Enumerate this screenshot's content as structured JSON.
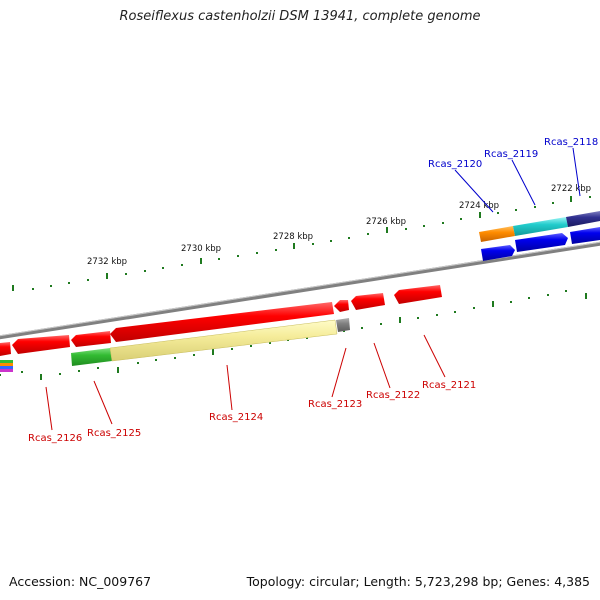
{
  "title": "Roseiflexus castenholzii DSM 13941, complete genome",
  "footer": {
    "accession": "Accession: NC_009767",
    "info": "Topology: circular; Length: 5,723,298 bp; Genes: 4,385"
  },
  "colors": {
    "backbone": "#8c8c8c",
    "tick": "#1f7a1f",
    "forward_label": "#0000cc",
    "reverse_label": "#cc0000"
  },
  "scale_labels": [
    "2732 kbp",
    "2730 kbp",
    "2728 kbp",
    "2726 kbp",
    "2724 kbp",
    "2722 kbp"
  ],
  "forward_genes": [
    "Rcas_2120",
    "Rcas_2119",
    "Rcas_2118"
  ],
  "reverse_genes": [
    "Rcas_2126",
    "Rcas_2125",
    "Rcas_2124",
    "Rcas_2123",
    "Rcas_2122",
    "Rcas_2121"
  ]
}
